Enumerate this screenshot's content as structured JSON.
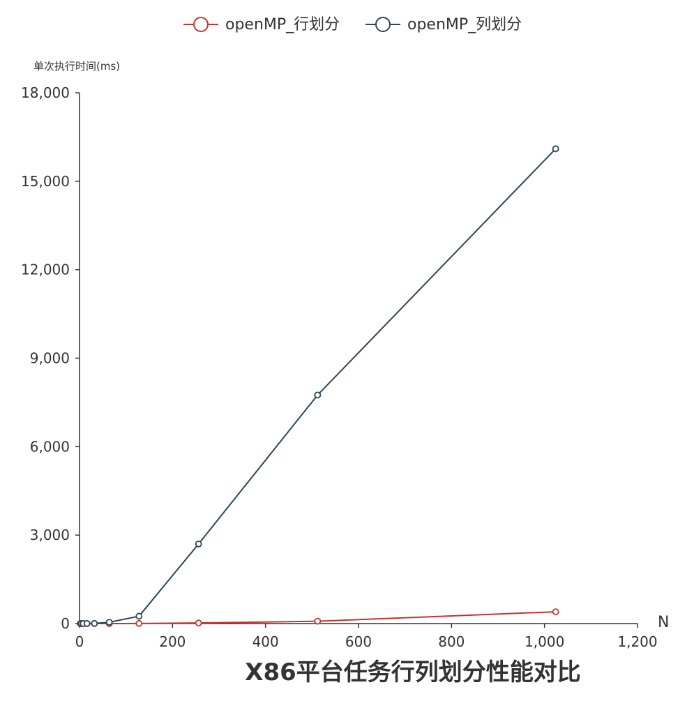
{
  "chart_data": {
    "type": "line",
    "title": "X86平台任务行列划分性能对比",
    "xlabel": "N",
    "ylabel": "单次执行时间(ms)",
    "xlim": [
      0,
      1200
    ],
    "ylim": [
      0,
      18000
    ],
    "x_ticks": [
      "0",
      "200",
      "400",
      "600",
      "800",
      "1,000",
      "1,200"
    ],
    "y_ticks": [
      "0",
      "3,000",
      "6,000",
      "9,000",
      "12,000",
      "15,000",
      "18,000"
    ],
    "legend_position": "top-center",
    "grid": false,
    "series": [
      {
        "name": "openMP_行划分",
        "color": "#c23531",
        "points": [
          [
            2,
            0
          ],
          [
            4,
            0
          ],
          [
            8,
            0
          ],
          [
            16,
            0
          ],
          [
            32,
            0
          ],
          [
            64,
            1
          ],
          [
            128,
            4
          ],
          [
            256,
            20
          ],
          [
            512,
            80
          ],
          [
            1024,
            400
          ]
        ]
      },
      {
        "name": "openMP_列划分",
        "color": "#2f4554",
        "points": [
          [
            2,
            0
          ],
          [
            4,
            0
          ],
          [
            8,
            0
          ],
          [
            16,
            1
          ],
          [
            32,
            5
          ],
          [
            64,
            45
          ],
          [
            128,
            250
          ],
          [
            256,
            2700
          ],
          [
            512,
            7750
          ],
          [
            1024,
            16100
          ]
        ]
      }
    ]
  }
}
